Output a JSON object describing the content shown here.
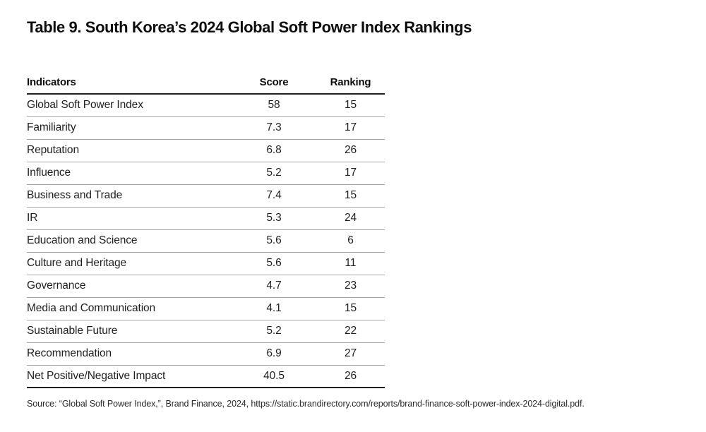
{
  "title": "Table 9. South Korea’s 2024 Global Soft Power Index Rankings",
  "table": {
    "columns": [
      "Indicators",
      "Score",
      "Ranking"
    ],
    "rows": [
      {
        "indicator": "Global Soft Power Index",
        "score": "58",
        "ranking": "15"
      },
      {
        "indicator": "Familiarity",
        "score": "7.3",
        "ranking": "17"
      },
      {
        "indicator": "Reputation",
        "score": "6.8",
        "ranking": "26"
      },
      {
        "indicator": "Influence",
        "score": "5.2",
        "ranking": "17"
      },
      {
        "indicator": "Business and Trade",
        "score": "7.4",
        "ranking": "15"
      },
      {
        "indicator": "IR",
        "score": "5.3",
        "ranking": "24"
      },
      {
        "indicator": "Education and Science",
        "score": "5.6",
        "ranking": "6"
      },
      {
        "indicator": "Culture and Heritage",
        "score": "5.6",
        "ranking": "11"
      },
      {
        "indicator": "Governance",
        "score": "4.7",
        "ranking": "23"
      },
      {
        "indicator": "Media and Communication",
        "score": "4.1",
        "ranking": "15"
      },
      {
        "indicator": "Sustainable Future",
        "score": "5.2",
        "ranking": "22"
      },
      {
        "indicator": "Recommendation",
        "score": "6.9",
        "ranking": "27"
      },
      {
        "indicator": "Net Positive/Negative Impact",
        "score": "40.5",
        "ranking": "26"
      }
    ]
  },
  "source": "Source: “Global Soft Power Index,”, Brand Finance, 2024, https://static.brandirectory.com/reports/brand-finance-soft-power-index-2024-digital.pdf."
}
